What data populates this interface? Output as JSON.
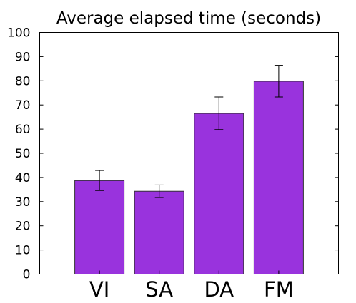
{
  "chart_data": {
    "type": "bar",
    "title": "Average elapsed time (seconds)",
    "xlabel": "",
    "ylabel": "",
    "categories": [
      "VI",
      "SA",
      "DA",
      "FM"
    ],
    "values": [
      38.7,
      34.3,
      66.5,
      79.8
    ],
    "error_low": [
      34.6,
      31.7,
      59.8,
      73.3
    ],
    "error_high": [
      42.9,
      36.9,
      73.3,
      86.4
    ],
    "ylim": [
      0,
      100
    ],
    "yticks": [
      0,
      10,
      20,
      30,
      40,
      50,
      60,
      70,
      80,
      90,
      100
    ],
    "grid": false,
    "legend": "none",
    "bar_color": "#9933dd",
    "bar_edge_color": "#333333"
  }
}
